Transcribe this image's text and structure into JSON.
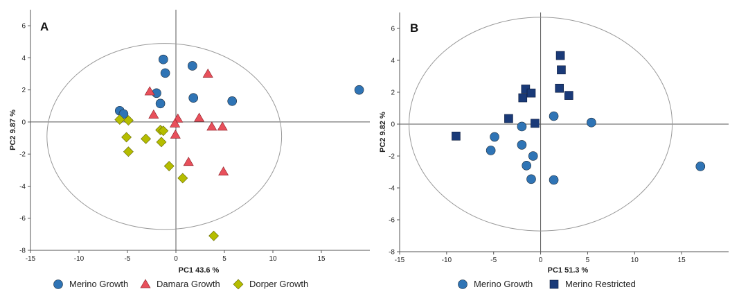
{
  "colors": {
    "merino_growth": "#2f74b5",
    "damara_growth": "#e8505b",
    "dorper_growth": "#b5bd00",
    "merino_restricted": "#1a3a78",
    "axis": "#555555",
    "ellipse": "#999999"
  },
  "chart_data": [
    {
      "type": "scatter",
      "panel_label": "A",
      "xlabel": "PC1 43.6 %",
      "ylabel": "PC2 9.87 %",
      "xlim": [
        -15,
        20
      ],
      "ylim": [
        -8,
        7
      ],
      "xticks": [
        -15,
        -10,
        -5,
        0,
        5,
        10,
        15
      ],
      "yticks": [
        -8,
        -6,
        -4,
        -2,
        0,
        2,
        4,
        6
      ],
      "grid": false,
      "legend": "bottom",
      "ellipse": {
        "cx": -1.2,
        "cy": -0.9,
        "rx": 12.1,
        "ry": 5.8
      },
      "series": [
        {
          "name": "Merino Growth",
          "marker": "circle",
          "color": "merino_growth",
          "points": [
            [
              -1.3,
              3.9
            ],
            [
              -1.1,
              3.05
            ],
            [
              1.7,
              3.5
            ],
            [
              -2.0,
              1.8
            ],
            [
              -1.6,
              1.15
            ],
            [
              1.8,
              1.5
            ],
            [
              5.8,
              1.3
            ],
            [
              -5.8,
              0.7
            ],
            [
              -5.4,
              0.5
            ],
            [
              18.9,
              2.0
            ]
          ]
        },
        {
          "name": "Damara Growth",
          "marker": "triangle",
          "color": "damara_growth",
          "points": [
            [
              3.3,
              3.0
            ],
            [
              -2.7,
              1.9
            ],
            [
              -2.3,
              0.45
            ],
            [
              0.2,
              0.2
            ],
            [
              2.4,
              0.25
            ],
            [
              -0.1,
              -0.1
            ],
            [
              3.7,
              -0.3
            ],
            [
              4.8,
              -0.3
            ],
            [
              -0.05,
              -0.8
            ],
            [
              1.3,
              -2.5
            ],
            [
              4.9,
              -3.1
            ]
          ]
        },
        {
          "name": "Dorper Growth",
          "marker": "diamond",
          "color": "dorper_growth",
          "points": [
            [
              -5.8,
              0.15
            ],
            [
              -4.9,
              0.1
            ],
            [
              -5.1,
              -0.95
            ],
            [
              -3.1,
              -1.05
            ],
            [
              -1.6,
              -0.5
            ],
            [
              -1.3,
              -0.55
            ],
            [
              -1.5,
              -1.25
            ],
            [
              -4.9,
              -1.85
            ],
            [
              -0.7,
              -2.75
            ],
            [
              0.7,
              -3.5
            ],
            [
              3.9,
              -7.1
            ]
          ]
        }
      ]
    },
    {
      "type": "scatter",
      "panel_label": "B",
      "xlabel": "PC1 51.3 %",
      "ylabel": "PC2 9.82 %",
      "xlim": [
        -15,
        20
      ],
      "ylim": [
        -8,
        7
      ],
      "xticks": [
        -15,
        -10,
        -5,
        0,
        5,
        10,
        15
      ],
      "yticks": [
        -8,
        -6,
        -4,
        -2,
        0,
        2,
        4,
        6
      ],
      "grid": false,
      "legend": "bottom",
      "ellipse": {
        "cx": 0.0,
        "cy": 0.0,
        "rx": 14.0,
        "ry": 6.7
      },
      "series": [
        {
          "name": "Merino Growth",
          "marker": "circle",
          "color": "merino_growth",
          "points": [
            [
              1.4,
              0.5
            ],
            [
              5.4,
              0.1
            ],
            [
              -2.0,
              -0.15
            ],
            [
              -4.9,
              -0.8
            ],
            [
              -2.0,
              -1.3
            ],
            [
              -5.3,
              -1.65
            ],
            [
              -0.8,
              -2.0
            ],
            [
              -1.5,
              -2.6
            ],
            [
              -1.0,
              -3.45
            ],
            [
              1.4,
              -3.5
            ],
            [
              17.0,
              -2.65
            ]
          ]
        },
        {
          "name": "Merino Restricted",
          "marker": "square",
          "color": "merino_restricted",
          "points": [
            [
              2.1,
              4.3
            ],
            [
              2.2,
              3.4
            ],
            [
              -1.6,
              2.2
            ],
            [
              -1.0,
              1.95
            ],
            [
              -1.9,
              1.65
            ],
            [
              2.0,
              2.25
            ],
            [
              3.0,
              1.8
            ],
            [
              -3.4,
              0.35
            ],
            [
              -0.6,
              0.05
            ],
            [
              -9.0,
              -0.75
            ]
          ]
        }
      ]
    }
  ]
}
